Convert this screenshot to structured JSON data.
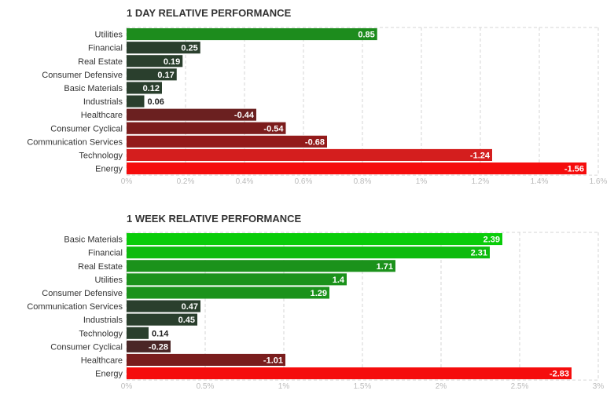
{
  "chart_data": [
    {
      "type": "bar",
      "orientation": "horizontal",
      "title": "1 DAY RELATIVE PERFORMANCE",
      "categories": [
        "Utilities",
        "Financial",
        "Real Estate",
        "Consumer Defensive",
        "Basic Materials",
        "Industrials",
        "Healthcare",
        "Consumer Cyclical",
        "Communication Services",
        "Technology",
        "Energy"
      ],
      "values": [
        0.85,
        0.25,
        0.19,
        0.17,
        0.12,
        0.06,
        -0.44,
        -0.54,
        -0.68,
        -1.24,
        -1.56
      ],
      "value_labels": [
        "0.85",
        "0.25",
        "0.19",
        "0.17",
        "0.12",
        "0.06",
        "-0.44",
        "-0.54",
        "-0.68",
        "-1.24",
        "-1.56"
      ],
      "ticks": [
        0,
        0.2,
        0.4,
        0.6,
        0.8,
        1,
        1.2,
        1.4,
        1.6
      ],
      "tick_labels": [
        "0%",
        "0.2%",
        "0.4%",
        "0.6%",
        "0.8%",
        "1%",
        "1.2%",
        "1.4%",
        "1.6%"
      ],
      "xlim": [
        0,
        1.6
      ],
      "bar_length": "absolute value",
      "grid": true,
      "colors": [
        "#1d8c1d",
        "#2a3f2d",
        "#2a3f2d",
        "#2a3f2d",
        "#2a3f2d",
        "#2a3f2d",
        "#6b2020",
        "#7c1d1d",
        "#931a1a",
        "#d41e1e",
        "#f50d0d"
      ]
    },
    {
      "type": "bar",
      "orientation": "horizontal",
      "title": "1 WEEK RELATIVE PERFORMANCE",
      "categories": [
        "Basic Materials",
        "Financial",
        "Real Estate",
        "Utilities",
        "Consumer Defensive",
        "Communication Services",
        "Industrials",
        "Technology",
        "Consumer Cyclical",
        "Healthcare",
        "Energy"
      ],
      "values": [
        2.39,
        2.31,
        1.71,
        1.4,
        1.29,
        0.47,
        0.45,
        0.14,
        -0.28,
        -1.01,
        -2.83
      ],
      "value_labels": [
        "2.39",
        "2.31",
        "1.71",
        "1.4",
        "1.29",
        "0.47",
        "0.45",
        "0.14",
        "-0.28",
        "-1.01",
        "-2.83"
      ],
      "ticks": [
        0,
        0.5,
        1,
        1.5,
        2,
        2.5,
        3
      ],
      "tick_labels": [
        "0%",
        "0.5%",
        "1%",
        "1.5%",
        "2%",
        "2.5%",
        "3%"
      ],
      "xlim": [
        0,
        3
      ],
      "bar_length": "absolute value",
      "grid": true,
      "colors": [
        "#09cc09",
        "#0dbb0d",
        "#1b921b",
        "#1b921b",
        "#1b921b",
        "#2a3f2d",
        "#2a3f2d",
        "#2a3f2d",
        "#4a2626",
        "#7a1d1d",
        "#f50d0d"
      ]
    }
  ]
}
